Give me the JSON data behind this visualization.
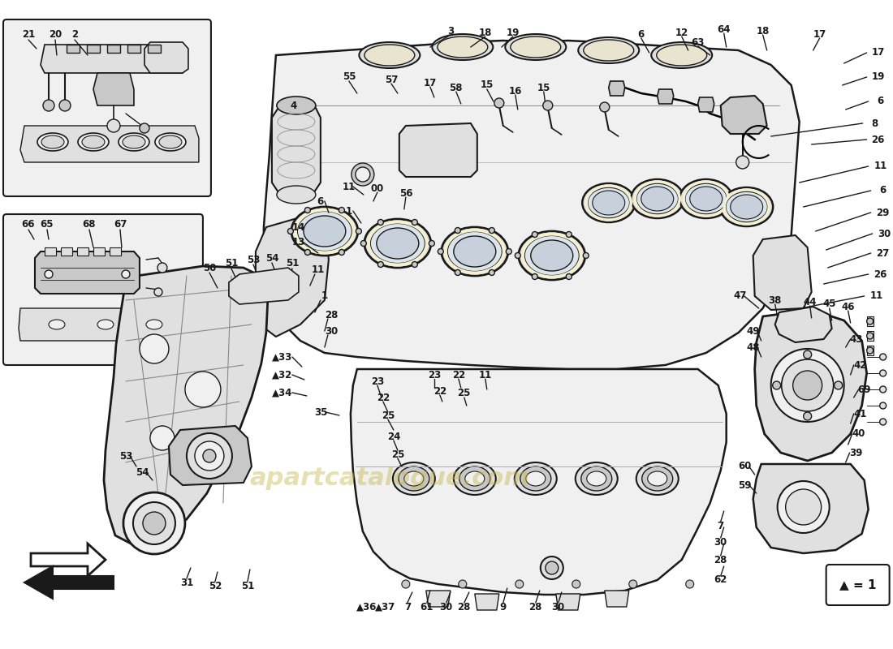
{
  "bg": "#ffffff",
  "watermark": "apartcatalogue.com",
  "wm_color": "#c8b850",
  "wm_alpha": 0.45,
  "line_color": "#1a1a1a",
  "line_width": 1.0,
  "fill_light": "#f0f0f0",
  "fill_mid": "#e0e0e0",
  "fill_dark": "#c8c8c8",
  "fill_yellow": "#f5f0d0",
  "label_size": 8.5,
  "label_bold": true,
  "fig_w": 11.0,
  "fig_h": 8.0,
  "dpi": 100
}
